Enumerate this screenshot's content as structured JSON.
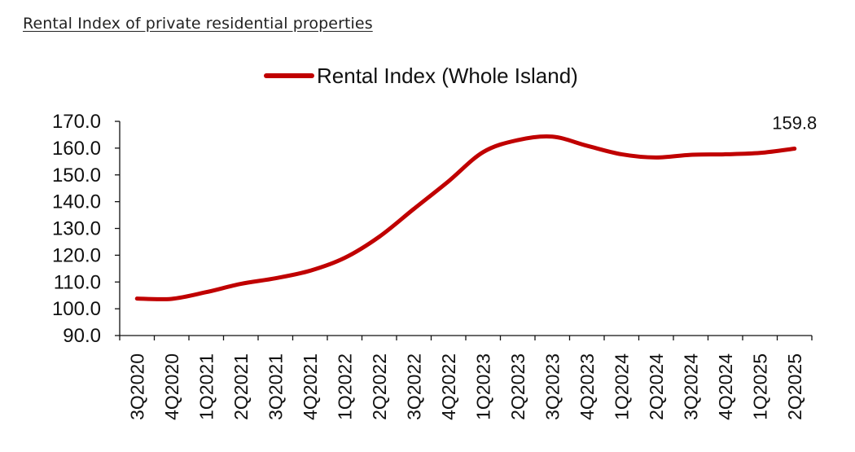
{
  "page": {
    "title": "Rental Index of private residential properties"
  },
  "chart_data": {
    "type": "line",
    "title": "",
    "xlabel": "",
    "ylabel": "",
    "categories": [
      "3Q2020",
      "4Q2020",
      "1Q2021",
      "2Q2021",
      "3Q2021",
      "4Q2021",
      "1Q2022",
      "2Q2022",
      "3Q2022",
      "4Q2022",
      "1Q2023",
      "2Q2023",
      "3Q2023",
      "4Q2023",
      "1Q2024",
      "2Q2024",
      "3Q2024",
      "4Q2024",
      "1Q2025",
      "2Q2025"
    ],
    "series": [
      {
        "name": "Rental Index (Whole Island)",
        "color": "#c00000",
        "values": [
          103.8,
          103.7,
          106.2,
          109.3,
          111.4,
          114.2,
          119.0,
          126.9,
          137.3,
          147.6,
          158.5,
          163.0,
          164.3,
          160.9,
          157.7,
          156.5,
          157.5,
          157.7,
          158.2,
          159.8
        ]
      }
    ],
    "ylim": [
      90.0,
      170.0
    ],
    "yticks": [
      "90.0",
      "100.0",
      "110.0",
      "120.0",
      "130.0",
      "140.0",
      "150.0",
      "160.0",
      "170.0"
    ],
    "grid": false,
    "legend_position": "top-center",
    "annotations": [
      {
        "category": "2Q2025",
        "text": "159.8"
      }
    ]
  }
}
